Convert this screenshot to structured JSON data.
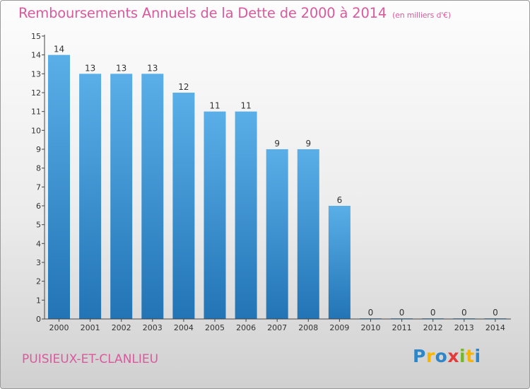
{
  "title": "Remboursements Annuels de la Dette de 2000 à 2014",
  "subtitle": "(en milliers d'€)",
  "place": "PUISIEUX-ET-CLANLIEU",
  "logo": {
    "letters": [
      "P",
      "r",
      "o",
      "x",
      "i",
      "t",
      "i"
    ],
    "colors": [
      "#2e86c8",
      "#f7b500",
      "#2e86c8",
      "#e33a3a",
      "#76b82a",
      "#f7b500",
      "#2e86c8"
    ]
  },
  "colors": {
    "title": "#d95a9c",
    "bar_top": "#5aafe8",
    "bar_bottom": "#2274b5",
    "axis": "#444444",
    "labels": "#333333"
  },
  "chart_data": {
    "type": "bar",
    "title": "Remboursements Annuels de la Dette de 2000 à 2014",
    "subtitle": "(en milliers d'€)",
    "categories": [
      "2000",
      "2001",
      "2002",
      "2003",
      "2004",
      "2005",
      "2006",
      "2007",
      "2008",
      "2009",
      "2010",
      "2011",
      "2012",
      "2013",
      "2014"
    ],
    "values": [
      14,
      13,
      13,
      13,
      12,
      11,
      11,
      9,
      9,
      6,
      0,
      0,
      0,
      0,
      0
    ],
    "ylim": [
      0,
      15
    ],
    "yticks": [
      0,
      1,
      2,
      3,
      4,
      5,
      6,
      7,
      8,
      9,
      10,
      11,
      12,
      13,
      14,
      15
    ],
    "grid": false,
    "data_labels": true
  }
}
